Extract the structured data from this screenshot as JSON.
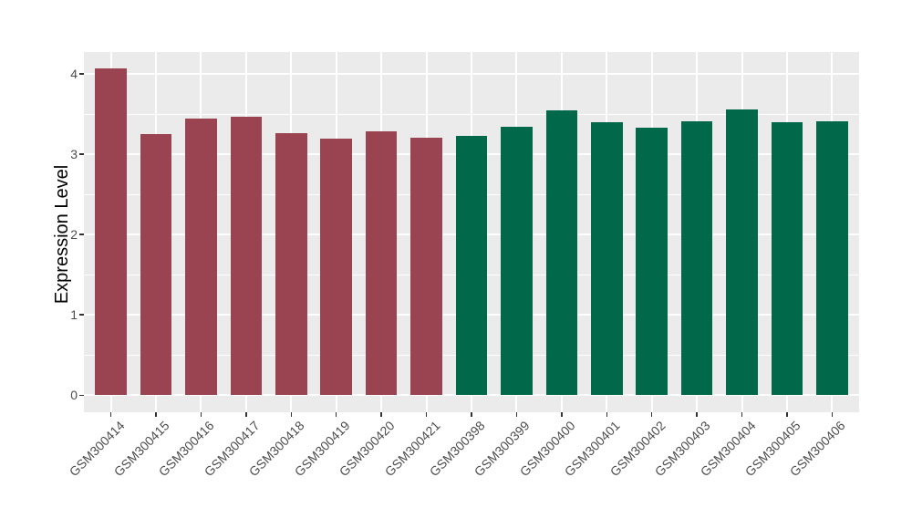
{
  "chart_data": {
    "type": "bar",
    "title": "",
    "xlabel": "",
    "ylabel": "Expression Level",
    "categories": [
      "GSM300414",
      "GSM300415",
      "GSM300416",
      "GSM300417",
      "GSM300418",
      "GSM300419",
      "GSM300420",
      "GSM300421",
      "GSM300398",
      "GSM300399",
      "GSM300400",
      "GSM300401",
      "GSM300402",
      "GSM300403",
      "GSM300404",
      "GSM300405",
      "GSM300406"
    ],
    "values": [
      4.07,
      3.25,
      3.44,
      3.47,
      3.26,
      3.19,
      3.29,
      3.21,
      3.23,
      3.34,
      3.55,
      3.4,
      3.33,
      3.41,
      3.56,
      3.4,
      3.41
    ],
    "groups": [
      {
        "name": "group-red",
        "color": "#9A4452",
        "count": 8
      },
      {
        "name": "group-green",
        "color": "#01694A",
        "count": 9
      }
    ],
    "y_ticks": [
      "0",
      "1",
      "2",
      "3",
      "4"
    ],
    "y_tick_values": [
      0,
      1,
      2,
      3,
      4
    ],
    "y_minor_tick_values": [
      0.5,
      1.5,
      2.5,
      3.5
    ],
    "ylim": [
      -0.212,
      4.272
    ],
    "grid": true,
    "legend": "none",
    "x_label_angle_degrees": 45,
    "styling": {
      "figure_background": "#FFFFFF",
      "panel_background": "#EBEBEB",
      "grid_color": "#FFFFFF",
      "tick_label_color": "#4D4D4D",
      "tick_mark_color": "#333333",
      "axis_title_color": "#000000"
    }
  }
}
